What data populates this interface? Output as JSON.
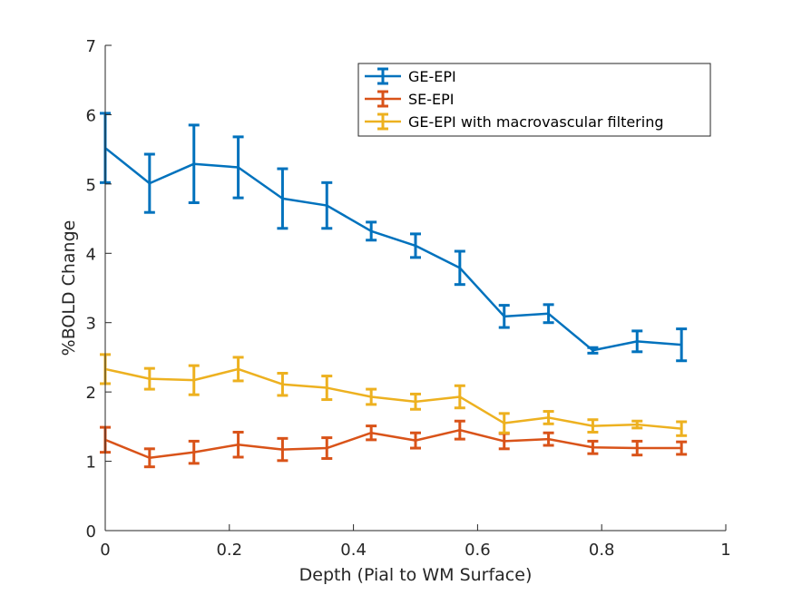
{
  "chart_data": {
    "type": "line",
    "title": "",
    "xlabel": "Depth (Pial to WM Surface)",
    "ylabel": "%BOLD Change",
    "xlim": [
      0,
      1
    ],
    "ylim": [
      0,
      7
    ],
    "xticks": [
      0,
      0.2,
      0.4,
      0.6,
      0.8,
      1
    ],
    "xtick_labels": [
      "0",
      "0.2",
      "0.4",
      "0.6",
      "0.8",
      "1"
    ],
    "yticks": [
      0,
      1,
      2,
      3,
      4,
      5,
      6,
      7
    ],
    "ytick_labels": [
      "0",
      "1",
      "2",
      "3",
      "4",
      "5",
      "6",
      "7"
    ],
    "grid": false,
    "legend_position": "top-right",
    "error_bars": true,
    "x": [
      0,
      0.0714,
      0.1429,
      0.2143,
      0.2857,
      0.3571,
      0.4286,
      0.5,
      0.5714,
      0.6429,
      0.7143,
      0.7857,
      0.8571,
      0.9286
    ],
    "series": [
      {
        "name": "GE-EPI",
        "color": "#0072BD",
        "values": [
          5.52,
          5.01,
          5.29,
          5.24,
          4.79,
          4.69,
          4.32,
          4.11,
          3.79,
          3.09,
          3.13,
          2.6,
          2.73,
          2.68
        ],
        "errors": [
          0.5,
          0.42,
          0.56,
          0.44,
          0.43,
          0.33,
          0.13,
          0.17,
          0.24,
          0.16,
          0.13,
          0.04,
          0.15,
          0.23
        ]
      },
      {
        "name": "SE-EPI",
        "color": "#D95319",
        "values": [
          1.31,
          1.05,
          1.13,
          1.24,
          1.17,
          1.19,
          1.41,
          1.3,
          1.45,
          1.29,
          1.32,
          1.2,
          1.19,
          1.19
        ],
        "errors": [
          0.18,
          0.13,
          0.16,
          0.18,
          0.16,
          0.15,
          0.1,
          0.11,
          0.13,
          0.11,
          0.09,
          0.09,
          0.1,
          0.09
        ]
      },
      {
        "name": "GE-EPI with macrovascular filtering",
        "color": "#EDB120",
        "values": [
          2.33,
          2.19,
          2.17,
          2.33,
          2.11,
          2.06,
          1.93,
          1.86,
          1.93,
          1.55,
          1.63,
          1.51,
          1.53,
          1.47
        ],
        "errors": [
          0.21,
          0.15,
          0.21,
          0.17,
          0.16,
          0.17,
          0.11,
          0.11,
          0.16,
          0.14,
          0.09,
          0.09,
          0.05,
          0.1
        ]
      }
    ]
  }
}
